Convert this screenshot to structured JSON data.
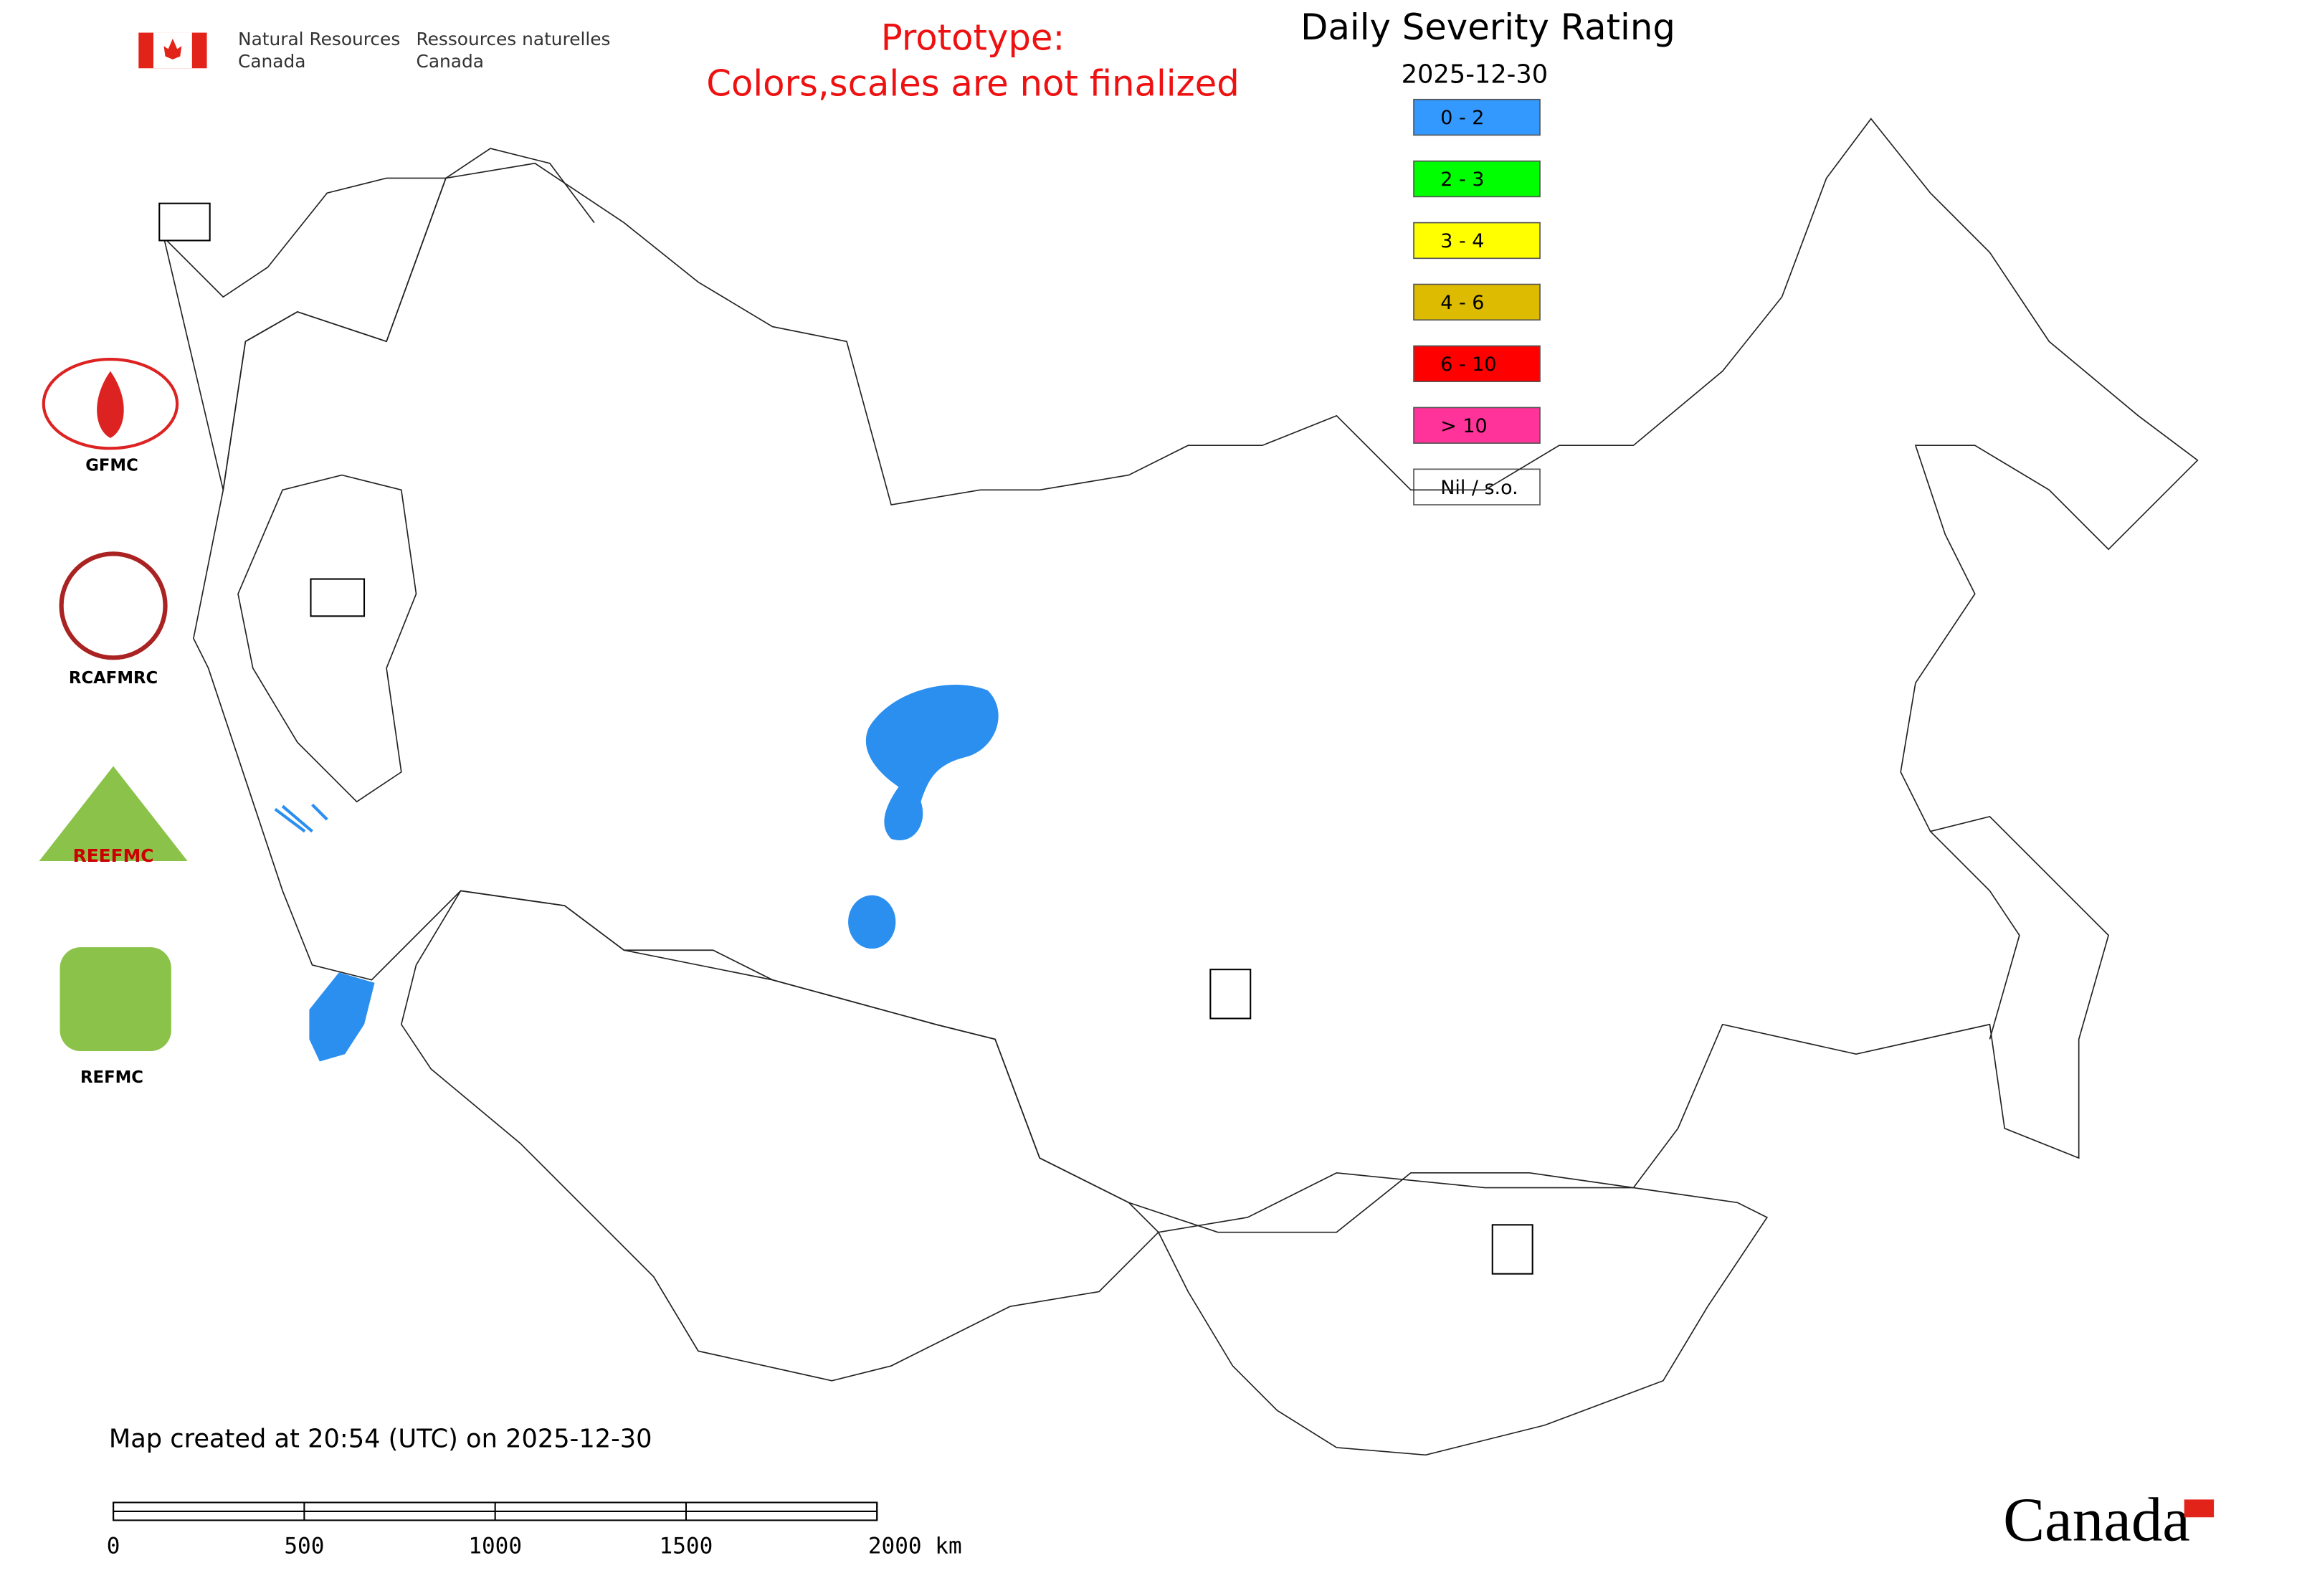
{
  "header": {
    "agency_en": [
      "Natural Resources",
      "Canada"
    ],
    "agency_fr": [
      "Ressources naturelles",
      "Canada"
    ],
    "notice": [
      "Prototype:",
      "Colors,scales are not finalized"
    ]
  },
  "map": {
    "title": "Daily Severity Rating",
    "date": "2025-12-30",
    "legend": [
      {
        "label": "0 - 2",
        "color": "#3399ff"
      },
      {
        "label": "2 - 3",
        "color": "#00ff00"
      },
      {
        "label": "3 - 4",
        "color": "#ffff00"
      },
      {
        "label": "4 - 6",
        "color": "#ddbb00"
      },
      {
        "label": "6 - 10",
        "color": "#ff0000"
      },
      {
        "label": "> 10",
        "color": "#ff3399"
      },
      {
        "label": "Nil / s.o.",
        "color": "#ffffff"
      }
    ],
    "logos": [
      "GFMC",
      "RCAFMRC",
      "REEFMC",
      "REFMC"
    ],
    "footer": "Map created at 20:54 (UTC) on 2025-12-30",
    "scale_bar": [
      "0",
      "500",
      "1000",
      "1500",
      "2000 km"
    ],
    "wordmark": "Canada"
  }
}
